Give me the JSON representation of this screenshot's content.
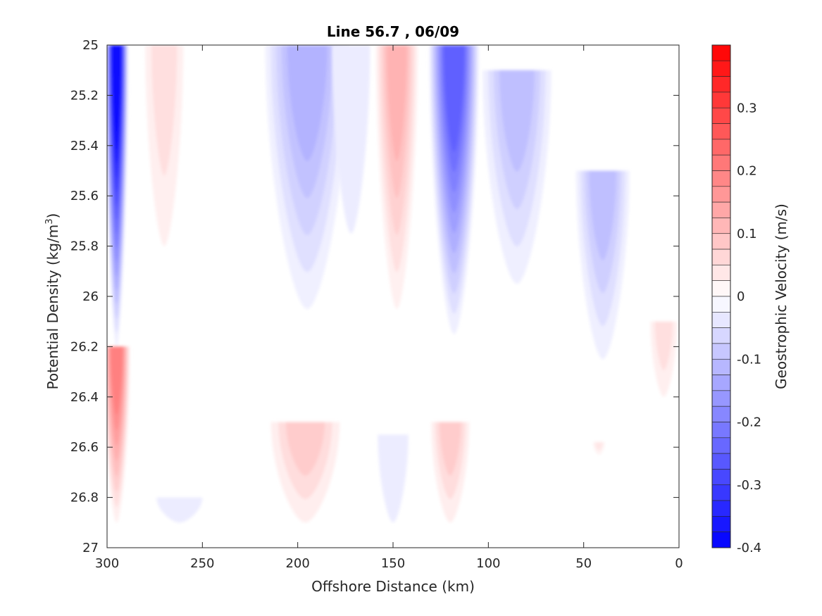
{
  "chart_data": {
    "type": "contour",
    "title": "Line 56.7 , 06/09",
    "xlabel": "Offshore Distance (km)",
    "ylabel": "Potential Density (kg/m",
    "ylabel_sup": "3",
    "ylabel_close": ")",
    "xlim": [
      300,
      0
    ],
    "x_reversed": true,
    "ylim": [
      25,
      27
    ],
    "y_reversed": true,
    "x_ticks": [
      300,
      250,
      200,
      150,
      100,
      50,
      0
    ],
    "y_ticks": [
      25,
      25.2,
      25.4,
      25.6,
      25.8,
      26,
      26.2,
      26.4,
      26.6,
      26.8,
      27
    ],
    "x_tick_labels": [
      "300",
      "250",
      "200",
      "150",
      "100",
      "50",
      "0"
    ],
    "y_tick_labels": [
      "25",
      "25.2",
      "25.4",
      "25.6",
      "25.8",
      "26",
      "26.2",
      "26.4",
      "26.6",
      "26.8",
      "27"
    ],
    "colorbar": {
      "label": "Geostrophic Velocity (m/s)",
      "range": [
        -0.4,
        0.4
      ],
      "levels": 32,
      "ticks": [
        -0.4,
        -0.3,
        -0.2,
        -0.1,
        0,
        0.1,
        0.2,
        0.3
      ],
      "tick_labels": [
        "-0.4",
        "-0.3",
        "-0.2",
        "-0.1",
        "0",
        "0.1",
        "0.2",
        "0.3"
      ],
      "colormap": "blue-white-red"
    },
    "grid": false,
    "features": [
      {
        "name": "offshore-negative-core",
        "type": "negative",
        "x_center": 295,
        "x_halfwidth": 6,
        "y_top": 25.0,
        "y_bottom": 26.2,
        "peak_velocity": -0.38
      },
      {
        "name": "offshore-positive-band",
        "type": "positive",
        "x_center": 270,
        "x_halfwidth": 10,
        "y_top": 25.0,
        "y_bottom": 25.8,
        "peak_velocity": 0.05
      },
      {
        "name": "offshore-deep-positive",
        "type": "positive",
        "x_center": 295,
        "x_halfwidth": 7,
        "y_top": 26.2,
        "y_bottom": 26.9,
        "peak_velocity": 0.2
      },
      {
        "name": "offshore-deep-negative",
        "type": "negative",
        "x_center": 262,
        "x_halfwidth": 12,
        "y_top": 26.8,
        "y_bottom": 26.9,
        "peak_velocity": -0.03
      },
      {
        "name": "jet-negative-195km",
        "type": "negative",
        "x_center": 195,
        "x_halfwidth": 22,
        "y_top": 25.0,
        "y_bottom": 26.05,
        "peak_velocity": -0.12
      },
      {
        "name": "jet-negative-172km",
        "type": "negative",
        "x_center": 172,
        "x_halfwidth": 10,
        "y_top": 25.0,
        "y_bottom": 25.75,
        "peak_velocity": -0.03
      },
      {
        "name": "jet-positive-148km",
        "type": "positive",
        "x_center": 148,
        "x_halfwidth": 11,
        "y_top": 25.0,
        "y_bottom": 26.05,
        "peak_velocity": 0.12
      },
      {
        "name": "jet-negative-118km",
        "type": "negative",
        "x_center": 118,
        "x_halfwidth": 13,
        "y_top": 25.0,
        "y_bottom": 26.15,
        "peak_velocity": -0.25
      },
      {
        "name": "jet-negative-85km",
        "type": "negative",
        "x_center": 85,
        "x_halfwidth": 18,
        "y_top": 25.1,
        "y_bottom": 25.95,
        "peak_velocity": -0.1
      },
      {
        "name": "coastal-negative-40km",
        "type": "negative",
        "x_center": 40,
        "x_halfwidth": 14,
        "y_top": 25.5,
        "y_bottom": 26.25,
        "peak_velocity": -0.1
      },
      {
        "name": "coastal-positive-5km",
        "type": "positive",
        "x_center": 8,
        "x_halfwidth": 7,
        "y_top": 26.1,
        "y_bottom": 26.4,
        "peak_velocity": 0.05
      },
      {
        "name": "deep-positive-195km",
        "type": "positive",
        "x_center": 196,
        "x_halfwidth": 18,
        "y_top": 26.5,
        "y_bottom": 26.9,
        "peak_velocity": 0.08
      },
      {
        "name": "deep-negative-150km",
        "type": "negative",
        "x_center": 150,
        "x_halfwidth": 8,
        "y_top": 26.55,
        "y_bottom": 26.9,
        "peak_velocity": -0.03
      },
      {
        "name": "deep-positive-120km",
        "type": "positive",
        "x_center": 120,
        "x_halfwidth": 10,
        "y_top": 26.5,
        "y_bottom": 26.9,
        "peak_velocity": 0.08
      },
      {
        "name": "small-positive-42km",
        "type": "positive",
        "x_center": 42,
        "x_halfwidth": 3,
        "y_top": 26.58,
        "y_bottom": 26.63,
        "peak_velocity": 0.04
      }
    ]
  }
}
